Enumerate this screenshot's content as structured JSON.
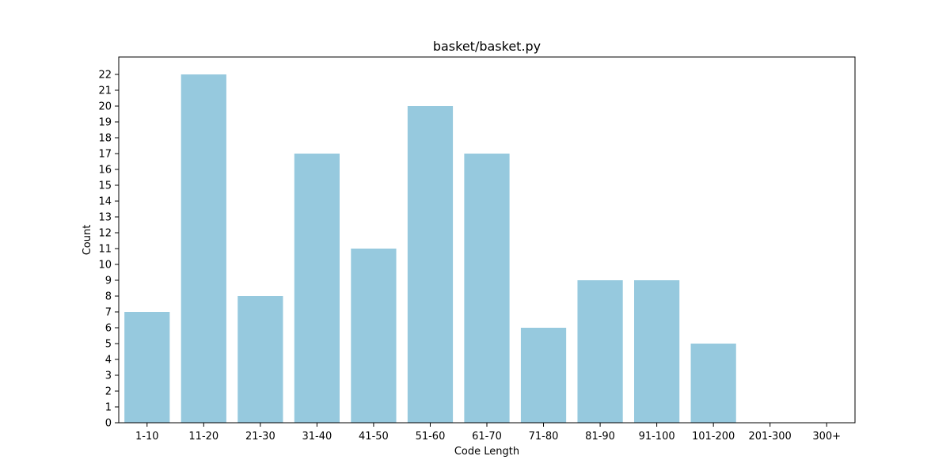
{
  "chart_data": {
    "type": "bar",
    "title": "basket/basket.py",
    "xlabel": "Code Length",
    "ylabel": "Count",
    "categories": [
      "1-10",
      "11-20",
      "21-30",
      "31-40",
      "41-50",
      "51-60",
      "61-70",
      "71-80",
      "81-90",
      "91-100",
      "101-200",
      "201-300",
      "300+"
    ],
    "values": [
      7,
      22,
      8,
      17,
      11,
      20,
      17,
      6,
      9,
      9,
      5,
      0,
      0
    ],
    "ylim": [
      0,
      23.1
    ],
    "yticks": [
      0,
      1,
      2,
      3,
      4,
      5,
      6,
      7,
      8,
      9,
      10,
      11,
      12,
      13,
      14,
      15,
      16,
      17,
      18,
      19,
      20,
      21,
      22
    ],
    "bar_color": "#96c9de",
    "grid": false,
    "legend": "none"
  }
}
